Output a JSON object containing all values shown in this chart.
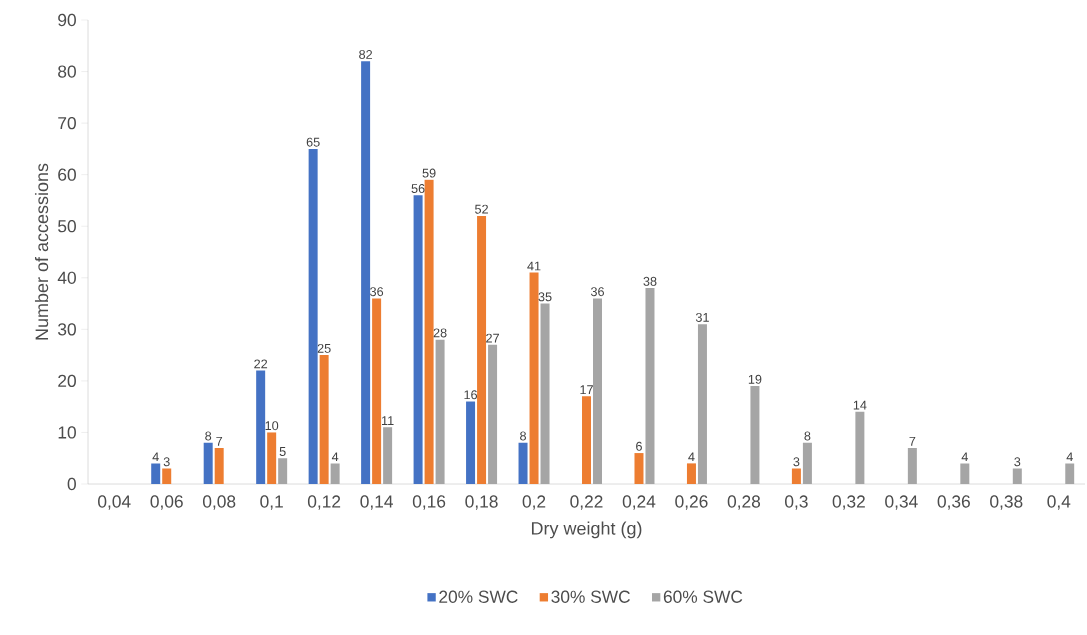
{
  "chart_data": {
    "type": "bar",
    "xlabel": "Dry weight (g)",
    "ylabel": "Number of accessions",
    "categories": [
      "0,04",
      "0,06",
      "0,08",
      "0,1",
      "0,12",
      "0,14",
      "0,16",
      "0,18",
      "0,2",
      "0,22",
      "0,24",
      "0,26",
      "0,28",
      "0,3",
      "0,32",
      "0,34",
      "0,36",
      "0,38",
      "0,4"
    ],
    "series": [
      {
        "name": "20% SWC",
        "color": "#4472c4",
        "values": [
          null,
          4,
          8,
          22,
          65,
          82,
          56,
          16,
          8,
          null,
          null,
          null,
          null,
          null,
          null,
          null,
          null,
          null,
          null
        ]
      },
      {
        "name": "30% SWC",
        "color": "#ed7d31",
        "values": [
          null,
          3,
          7,
          10,
          25,
          36,
          59,
          52,
          41,
          17,
          6,
          4,
          null,
          3,
          null,
          null,
          null,
          null,
          null
        ]
      },
      {
        "name": "60% SWC",
        "color": "#a5a5a5",
        "values": [
          null,
          null,
          null,
          5,
          4,
          11,
          28,
          27,
          35,
          36,
          38,
          31,
          19,
          8,
          14,
          7,
          4,
          3,
          4
        ]
      }
    ],
    "ylim": [
      0,
      90
    ],
    "yticks": [
      0,
      10,
      20,
      30,
      40,
      50,
      60,
      70,
      80,
      90
    ],
    "data_labels": true,
    "legend": "bottom",
    "grid": false
  }
}
